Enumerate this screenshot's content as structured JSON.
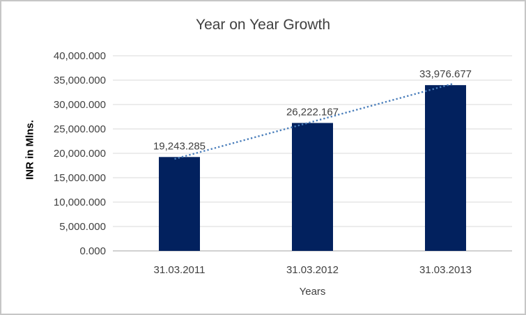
{
  "frame": {
    "background_color": "#FFFFFF",
    "border_color": "#C6C6C6"
  },
  "chart_data": {
    "type": "bar",
    "title": "Year on Year Growth",
    "xlabel": "Years",
    "ylabel": "INR in Mlns.",
    "categories": [
      "31.03.2011",
      "31.03.2012",
      "31.03.2013"
    ],
    "values": [
      19243.285,
      26222.167,
      33976.677
    ],
    "data_labels": [
      "19,243.285",
      "26,222.167",
      "33,976.677"
    ],
    "series": [
      {
        "name": "INR in Mlns.",
        "values": [
          19243.285,
          26222.167,
          33976.677
        ]
      }
    ],
    "ylim": [
      0,
      40000
    ],
    "y_tick_step": 5000,
    "y_tick_labels": [
      "0.000",
      "5,000.000",
      "10,000.000",
      "15,000.000",
      "20,000.000",
      "25,000.000",
      "30,000.000",
      "35,000.000",
      "40,000.000"
    ],
    "grid": true,
    "legend": "none",
    "bar_color": "#02215E",
    "gridline_color": "#D9D9D9",
    "axis_line_color": "#C2C2C2",
    "text_color": "#404040",
    "trendline": {
      "type": "linear",
      "style": "dotted",
      "color": "#4A7EBB"
    }
  }
}
